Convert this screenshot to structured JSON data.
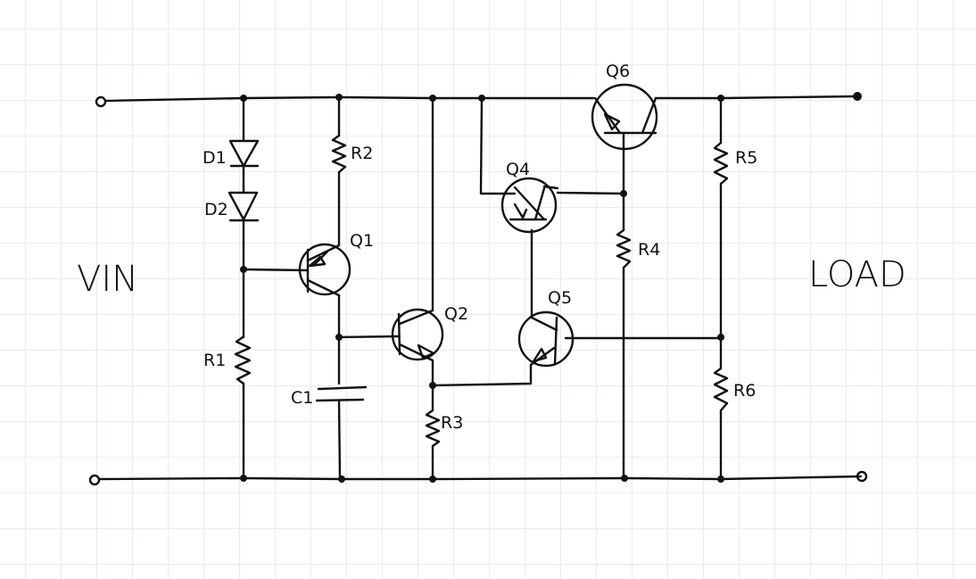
{
  "labels": {
    "vin": "VIN",
    "load": "LOAD",
    "d1": "D1",
    "d2": "D2",
    "r1": "R1",
    "r2": "R2",
    "r3": "R3",
    "r4": "R4",
    "r5": "R5",
    "r6": "R6",
    "c1": "C1",
    "q1": "Q1",
    "q2": "Q2",
    "q4": "Q4",
    "q5": "Q5",
    "q6": "Q6"
  }
}
